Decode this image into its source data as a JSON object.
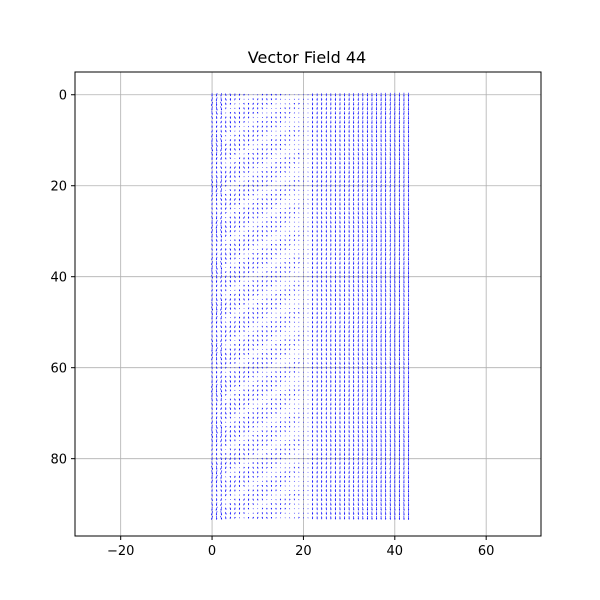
{
  "chart_data": {
    "type": "quiver",
    "title": "Vector Field 44",
    "xlabel": "",
    "ylabel": "",
    "xlim": [
      -30,
      72
    ],
    "ylim": [
      97,
      -5
    ],
    "y_inverted": true,
    "grid": true,
    "arrow_color": "#0000ff",
    "x_ticks": [
      -20,
      0,
      20,
      40,
      60
    ],
    "y_ticks": [
      0,
      20,
      40,
      60,
      80
    ],
    "field": {
      "x_range": [
        0,
        43
      ],
      "y_range": [
        0,
        93
      ],
      "step": 1,
      "approximate": true
    }
  }
}
